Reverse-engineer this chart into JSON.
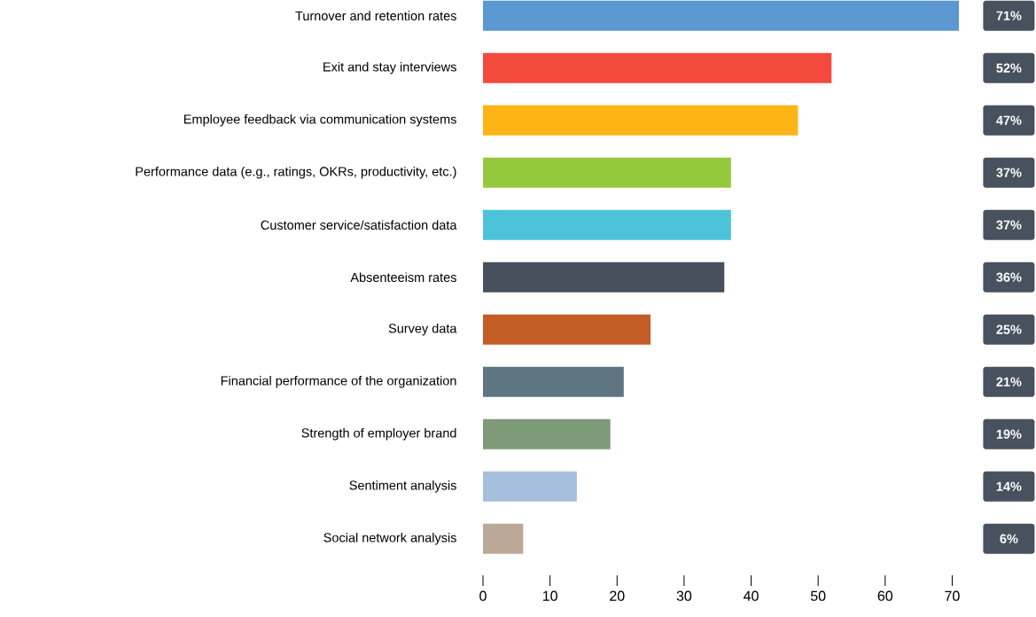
{
  "chart_data": {
    "type": "bar",
    "orientation": "horizontal",
    "categories": [
      "Turnover and retention rates",
      "Exit and stay interviews",
      "Employee feedback via communication systems",
      "Performance data (e.g., ratings, OKRs, productivity, etc.)",
      "Customer service/satisfaction data",
      "Absenteeism rates",
      "Survey data",
      "Financial performance of the organization",
      "Strength of employer brand",
      "Sentiment analysis",
      "Social network analysis"
    ],
    "values": [
      71,
      52,
      47,
      37,
      37,
      36,
      25,
      21,
      19,
      14,
      6
    ],
    "colors": [
      "#5b97d1",
      "#f44a3e",
      "#fdb515",
      "#95c93d",
      "#4cc3d9",
      "#46505c",
      "#c45c26",
      "#5e7682",
      "#7f9a78",
      "#a5bfdc",
      "#bba897"
    ],
    "value_labels": [
      "71%",
      "52%",
      "47%",
      "37%",
      "37%",
      "36%",
      "25%",
      "21%",
      "19%",
      "14%",
      "6%"
    ],
    "xlim": [
      0,
      71
    ],
    "xticks": [
      0,
      10,
      20,
      30,
      40,
      50,
      60,
      70
    ]
  }
}
